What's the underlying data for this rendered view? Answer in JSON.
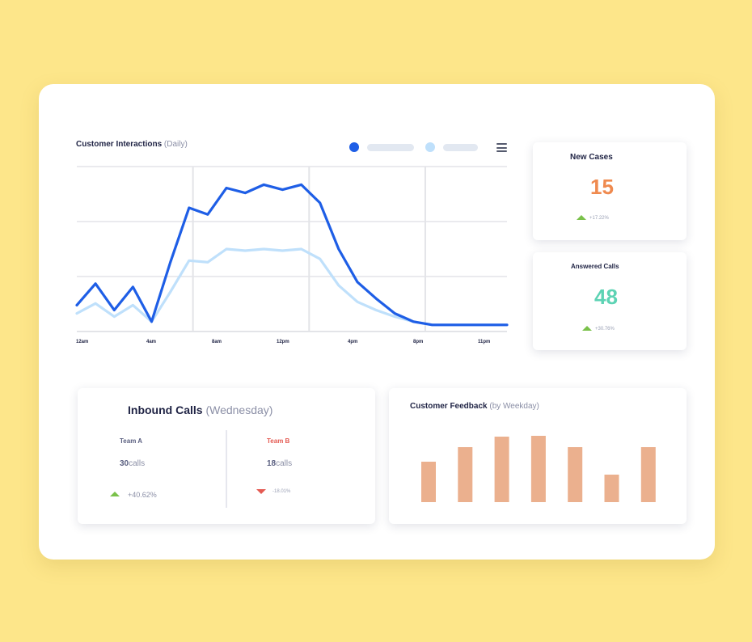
{
  "line_chart": {
    "title": "Customer Interactions",
    "title_suffix": "(Daily)",
    "legend": [
      {
        "color": "#1e5ee6"
      },
      {
        "color": "#bfe0fb"
      }
    ],
    "menu_icon": "hamburger-menu-icon",
    "chart_data": {
      "type": "line",
      "x": [
        0,
        1,
        2,
        3,
        4,
        5,
        6,
        7,
        8,
        9,
        10,
        11,
        12,
        13,
        14,
        15,
        16,
        17,
        18,
        19,
        20,
        21,
        22,
        23
      ],
      "x_tick_labels": [
        "12am",
        "4am",
        "8am",
        "12pm",
        "4pm",
        "8pm",
        "11pm"
      ],
      "ylim": [
        0,
        100
      ],
      "grid": true,
      "series": [
        {
          "color": "#1e5ee6",
          "values": [
            16,
            29,
            13,
            27,
            6,
            42,
            75,
            71,
            87,
            84,
            89,
            86,
            89,
            78,
            50,
            30,
            20,
            11,
            6,
            4,
            4,
            4,
            4,
            4
          ]
        },
        {
          "color": "#bfe0fb",
          "values": [
            11,
            17,
            9,
            16,
            6,
            24,
            43,
            42,
            50,
            49,
            50,
            49,
            50,
            44,
            28,
            18,
            13,
            9,
            6,
            4,
            4,
            4,
            4,
            4
          ]
        }
      ]
    }
  },
  "new_cases": {
    "title": "New Cases",
    "value": "15",
    "change": "+17.22%",
    "value_color": "#ef8a4f"
  },
  "answered_calls": {
    "title": "Answered Calls",
    "value": "48",
    "change": "+30.76%",
    "value_color": "#5dd3b4"
  },
  "inbound": {
    "title": "Inbound Calls",
    "title_suffix": "(Wednesday)",
    "team_a": {
      "label": "Team A",
      "value": "30",
      "unit": "calls",
      "change": "+40.62%",
      "label_color": "#5a5f80"
    },
    "team_b": {
      "label": "Team B",
      "value": "18",
      "unit": "calls",
      "change": "-18.01%",
      "label_color": "#e45a52"
    }
  },
  "feedback": {
    "title": "Customer Feedback",
    "title_suffix": "(by Weekday)",
    "chart_data": {
      "type": "bar",
      "values": [
        50,
        68,
        81,
        82,
        68,
        34,
        68
      ],
      "ylim": [
        0,
        82
      ],
      "bar_color": "#ebb08e"
    }
  }
}
